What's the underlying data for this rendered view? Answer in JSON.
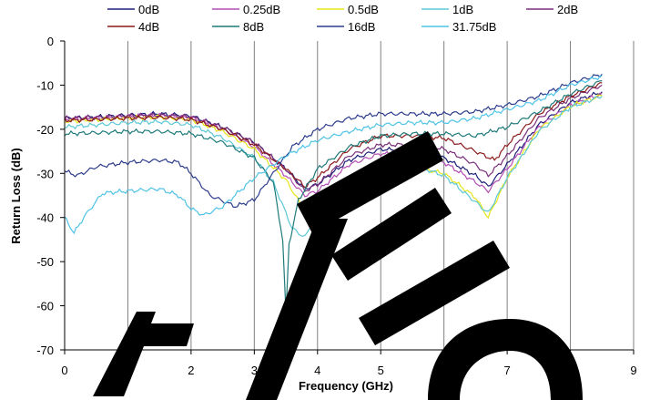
{
  "chart_data": {
    "type": "line",
    "xlabel": "Frequency (GHz)",
    "ylabel": "Return Loss (dB)",
    "xlim": [
      0,
      9
    ],
    "ylim": [
      -70,
      0
    ],
    "xticks": [
      "0",
      "1",
      "2",
      "3",
      "4",
      "5",
      "6",
      "7",
      "8",
      "9"
    ],
    "yticks": [
      "0",
      "-10",
      "-20",
      "-30",
      "-40",
      "-50",
      "-60",
      "-70"
    ],
    "grid": "vertical",
    "legend_position": "top",
    "series": [
      {
        "name": "0dB",
        "color": "#1f1f7a",
        "points": [
          [
            0.0,
            -17.5
          ],
          [
            0.5,
            -17.2
          ],
          [
            1.0,
            -16.8
          ],
          [
            1.5,
            -16.5
          ],
          [
            2.0,
            -17.0
          ],
          [
            2.5,
            -19.5
          ],
          [
            3.0,
            -23.0
          ],
          [
            3.5,
            -29.0
          ],
          [
            3.8,
            -33.5
          ],
          [
            4.0,
            -32.5
          ],
          [
            4.5,
            -27.0
          ],
          [
            5.0,
            -24.5
          ],
          [
            5.5,
            -25.0
          ],
          [
            6.0,
            -26.5
          ],
          [
            6.5,
            -30.5
          ],
          [
            6.7,
            -33.0
          ],
          [
            7.0,
            -28.0
          ],
          [
            7.5,
            -19.0
          ],
          [
            8.0,
            -14.0
          ],
          [
            8.5,
            -11.5
          ]
        ]
      },
      {
        "name": "0.25dB",
        "color": "#b34db3",
        "points": [
          [
            0.0,
            -17.8
          ],
          [
            0.5,
            -17.5
          ],
          [
            1.0,
            -17.0
          ],
          [
            1.5,
            -16.8
          ],
          [
            2.0,
            -17.3
          ],
          [
            2.5,
            -20.0
          ],
          [
            3.0,
            -24.0
          ],
          [
            3.5,
            -30.5
          ],
          [
            3.8,
            -35.0
          ],
          [
            4.0,
            -34.0
          ],
          [
            4.5,
            -28.0
          ],
          [
            5.0,
            -25.5
          ],
          [
            5.5,
            -26.0
          ],
          [
            6.0,
            -27.5
          ],
          [
            6.5,
            -32.0
          ],
          [
            6.7,
            -34.0
          ],
          [
            7.0,
            -29.0
          ],
          [
            7.5,
            -19.5
          ],
          [
            8.0,
            -14.5
          ],
          [
            8.5,
            -12.0
          ]
        ]
      },
      {
        "name": "0.5dB",
        "color": "#e6e61a",
        "points": [
          [
            0.0,
            -18.2
          ],
          [
            0.5,
            -17.8
          ],
          [
            1.0,
            -17.4
          ],
          [
            1.5,
            -17.2
          ],
          [
            2.0,
            -17.8
          ],
          [
            2.5,
            -20.5
          ],
          [
            3.0,
            -24.5
          ],
          [
            3.5,
            -31.5
          ],
          [
            3.8,
            -38.5
          ],
          [
            4.0,
            -37.5
          ],
          [
            4.5,
            -31.0
          ],
          [
            5.0,
            -27.5
          ],
          [
            5.5,
            -28.5
          ],
          [
            6.0,
            -30.0
          ],
          [
            6.5,
            -35.5
          ],
          [
            6.7,
            -40.0
          ],
          [
            7.0,
            -31.0
          ],
          [
            7.5,
            -20.0
          ],
          [
            8.0,
            -14.8
          ],
          [
            8.5,
            -12.3
          ]
        ]
      },
      {
        "name": "1dB",
        "color": "#5cc8d6",
        "points": [
          [
            0.0,
            -19.5
          ],
          [
            0.5,
            -19.0
          ],
          [
            1.0,
            -18.5
          ],
          [
            1.5,
            -18.3
          ],
          [
            2.0,
            -19.0
          ],
          [
            2.5,
            -22.0
          ],
          [
            3.0,
            -26.5
          ],
          [
            3.3,
            -32.0
          ],
          [
            3.6,
            -42.5
          ],
          [
            3.8,
            -44.5
          ],
          [
            4.0,
            -39.0
          ],
          [
            4.5,
            -31.0
          ],
          [
            5.0,
            -27.0
          ],
          [
            5.5,
            -28.0
          ],
          [
            6.0,
            -30.5
          ],
          [
            6.5,
            -36.5
          ],
          [
            6.7,
            -39.0
          ],
          [
            7.0,
            -31.0
          ],
          [
            7.5,
            -20.5
          ],
          [
            8.0,
            -15.0
          ],
          [
            8.5,
            -12.5
          ]
        ]
      },
      {
        "name": "2dB",
        "color": "#7a2e7a",
        "points": [
          [
            0.0,
            -17.5
          ],
          [
            0.5,
            -17.3
          ],
          [
            1.0,
            -17.0
          ],
          [
            1.5,
            -16.8
          ],
          [
            2.0,
            -17.2
          ],
          [
            2.5,
            -19.5
          ],
          [
            3.0,
            -23.0
          ],
          [
            3.5,
            -29.0
          ],
          [
            3.8,
            -34.0
          ],
          [
            4.0,
            -32.5
          ],
          [
            4.5,
            -26.0
          ],
          [
            5.0,
            -23.5
          ],
          [
            5.5,
            -23.5
          ],
          [
            6.0,
            -24.5
          ],
          [
            6.5,
            -28.0
          ],
          [
            6.7,
            -30.5
          ],
          [
            7.0,
            -26.0
          ],
          [
            7.5,
            -17.5
          ],
          [
            8.0,
            -13.0
          ],
          [
            8.5,
            -10.0
          ]
        ]
      },
      {
        "name": "4dB",
        "color": "#8b1a1a",
        "points": [
          [
            0.0,
            -18.0
          ],
          [
            0.5,
            -17.8
          ],
          [
            1.0,
            -17.5
          ],
          [
            1.5,
            -17.3
          ],
          [
            2.0,
            -17.8
          ],
          [
            2.5,
            -20.0
          ],
          [
            3.0,
            -23.5
          ],
          [
            3.5,
            -29.0
          ],
          [
            3.8,
            -33.0
          ],
          [
            4.0,
            -31.0
          ],
          [
            4.5,
            -24.5
          ],
          [
            5.0,
            -21.5
          ],
          [
            5.5,
            -21.5
          ],
          [
            6.0,
            -22.0
          ],
          [
            6.5,
            -25.0
          ],
          [
            6.8,
            -27.0
          ],
          [
            7.0,
            -23.5
          ],
          [
            7.5,
            -16.5
          ],
          [
            8.0,
            -12.5
          ],
          [
            8.5,
            -9.5
          ]
        ]
      },
      {
        "name": "8dB",
        "color": "#1f7a7a",
        "points": [
          [
            0.0,
            -21.0
          ],
          [
            0.5,
            -20.8
          ],
          [
            1.0,
            -20.5
          ],
          [
            1.5,
            -20.5
          ],
          [
            2.0,
            -21.0
          ],
          [
            2.5,
            -23.0
          ],
          [
            3.0,
            -26.5
          ],
          [
            3.3,
            -32.0
          ],
          [
            3.45,
            -45.0
          ],
          [
            3.5,
            -62.0
          ],
          [
            3.55,
            -46.0
          ],
          [
            3.7,
            -36.0
          ],
          [
            4.0,
            -29.0
          ],
          [
            4.5,
            -24.0
          ],
          [
            5.0,
            -21.5
          ],
          [
            5.5,
            -21.0
          ],
          [
            6.0,
            -21.0
          ],
          [
            6.5,
            -21.5
          ],
          [
            7.0,
            -19.5
          ],
          [
            7.5,
            -16.0
          ],
          [
            8.0,
            -12.0
          ],
          [
            8.5,
            -9.0
          ]
        ]
      },
      {
        "name": "16dB",
        "color": "#2d3d8c",
        "points": [
          [
            0.0,
            -29.5
          ],
          [
            0.2,
            -30.5
          ],
          [
            0.5,
            -28.5
          ],
          [
            1.0,
            -27.5
          ],
          [
            1.5,
            -27.0
          ],
          [
            1.8,
            -27.5
          ],
          [
            2.0,
            -30.0
          ],
          [
            2.3,
            -35.0
          ],
          [
            2.7,
            -37.5
          ],
          [
            3.0,
            -36.0
          ],
          [
            3.3,
            -30.0
          ],
          [
            3.6,
            -24.0
          ],
          [
            4.0,
            -20.0
          ],
          [
            4.5,
            -17.5
          ],
          [
            5.0,
            -16.5
          ],
          [
            5.5,
            -16.5
          ],
          [
            6.0,
            -16.5
          ],
          [
            6.5,
            -16.0
          ],
          [
            7.0,
            -14.5
          ],
          [
            7.5,
            -12.5
          ],
          [
            8.0,
            -9.5
          ],
          [
            8.5,
            -7.5
          ]
        ]
      },
      {
        "name": "31.75dB",
        "color": "#4fc3e6",
        "points": [
          [
            0.0,
            -40.0
          ],
          [
            0.15,
            -43.5
          ],
          [
            0.3,
            -40.0
          ],
          [
            0.6,
            -34.5
          ],
          [
            1.0,
            -34.0
          ],
          [
            1.5,
            -33.5
          ],
          [
            1.8,
            -35.0
          ],
          [
            2.0,
            -38.0
          ],
          [
            2.2,
            -39.5
          ],
          [
            2.5,
            -37.5
          ],
          [
            3.0,
            -31.0
          ],
          [
            3.5,
            -26.0
          ],
          [
            4.0,
            -22.5
          ],
          [
            4.5,
            -20.5
          ],
          [
            5.0,
            -19.0
          ],
          [
            5.5,
            -18.5
          ],
          [
            6.0,
            -18.5
          ],
          [
            6.5,
            -17.5
          ],
          [
            7.0,
            -15.5
          ],
          [
            7.5,
            -13.5
          ],
          [
            8.0,
            -10.0
          ],
          [
            8.5,
            -8.0
          ]
        ]
      }
    ]
  }
}
